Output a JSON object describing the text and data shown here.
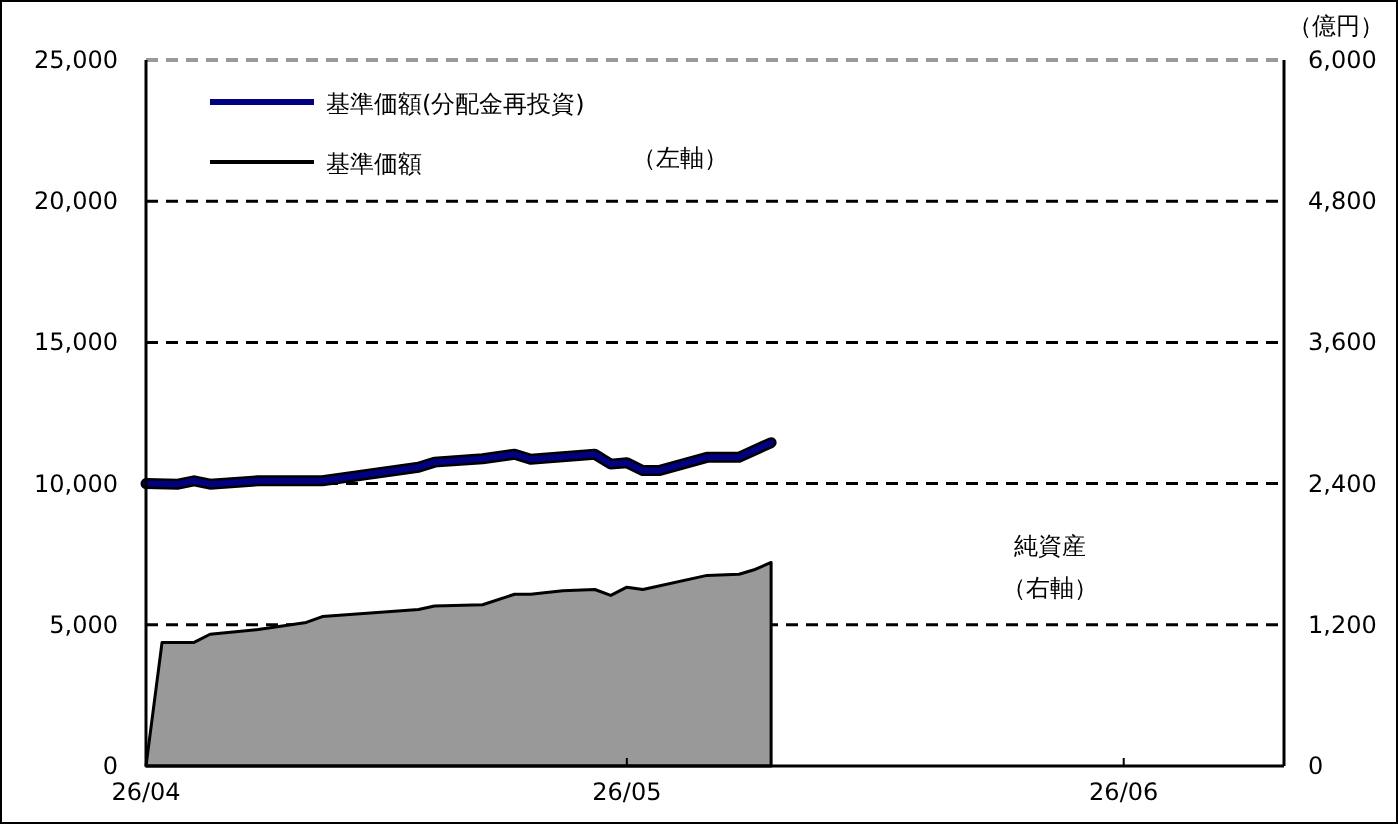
{
  "chart_data": {
    "type": "line",
    "x": [
      "--04-01",
      "--04-03",
      "--04-04",
      "--04-05",
      "--04-08",
      "--04-12",
      "--04-18",
      "--04-19",
      "--04-22",
      "--04-24",
      "--04-25",
      "--04-29",
      "--04-30",
      "--05-01",
      "--05-02",
      "--05-03",
      "--05-06",
      "--05-08",
      "--05-10"
    ],
    "series": [
      {
        "name": "基準価額(分配金再投資)",
        "color": "#000080",
        "values": [
          10000,
          9980,
          10100,
          9980,
          10100,
          10100,
          10580,
          10760,
          10880,
          11040,
          10860,
          11040,
          10690,
          10740,
          10460,
          10460,
          10930,
          10930,
          11450
        ]
      },
      {
        "name": "基準価額",
        "color": "#000000",
        "values": [
          10000,
          9980,
          10100,
          9980,
          10100,
          10100,
          10580,
          10760,
          10880,
          11040,
          10860,
          11040,
          10690,
          10740,
          10460,
          10460,
          10930,
          10930,
          11450
        ]
      },
      {
        "type": "area",
        "axis": "y2",
        "color": "#999999",
        "x": [
          "--04-01",
          "--04-02",
          "--04-04",
          "--04-05",
          "--04-08",
          "--04-11",
          "--04-12",
          "--04-18",
          "--04-19",
          "--04-22",
          "--04-24",
          "--04-25",
          "--04-27",
          "--04-29",
          "--04-30",
          "--05-01",
          "--05-02",
          "--05-06",
          "--05-08",
          "--05-09",
          "--05-10"
        ],
        "values": [
          0,
          1050,
          1050,
          1120,
          1160,
          1220,
          1270,
          1330,
          1360,
          1370,
          1460,
          1460,
          1490,
          1500,
          1450,
          1520,
          1500,
          1620,
          1630,
          1670,
          1730
        ]
      }
    ],
    "xlim": [
      "--04-01",
      "--06-11"
    ],
    "xticks": [
      {
        "value": "--04-01",
        "label": "26/04"
      },
      {
        "value": "--05-01",
        "label": "26/05"
      },
      {
        "value": "--06-01",
        "label": "26/06"
      }
    ],
    "ylim": [
      0,
      25000
    ],
    "yticks": [
      {
        "value": 0,
        "label": "0"
      },
      {
        "value": 5000,
        "label": "5,000"
      },
      {
        "value": 10000,
        "label": "10,000"
      },
      {
        "value": 15000,
        "label": "15,000"
      },
      {
        "value": 20000,
        "label": "20,000"
      },
      {
        "value": 25000,
        "label": "25,000"
      }
    ],
    "y2lim": [
      0,
      6000
    ],
    "y2ticks": [
      {
        "value": 0,
        "label": "0"
      },
      {
        "value": 1200,
        "label": "1,200"
      },
      {
        "value": 2400,
        "label": "2,400"
      },
      {
        "value": 3600,
        "label": "3,600"
      },
      {
        "value": 4800,
        "label": "4,800"
      },
      {
        "value": 6000,
        "label": "6,000"
      }
    ],
    "y2label": "（億円）",
    "grid": "y",
    "legend": "top left",
    "annotations": [
      "（左軸）",
      "純資産",
      "（右軸）"
    ]
  }
}
